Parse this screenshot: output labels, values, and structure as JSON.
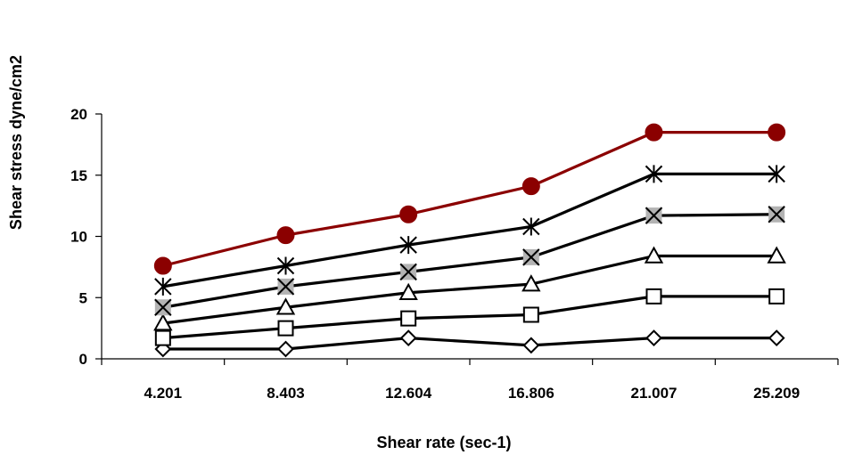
{
  "chart_data": {
    "type": "line",
    "title": "",
    "xlabel": "Shear rate (sec-1)",
    "ylabel": "Shear stress dyne/cm2",
    "categories": [
      "4.201",
      "8.403",
      "12.604",
      "16.806",
      "21.007",
      "25.209"
    ],
    "ylim": [
      0,
      20
    ],
    "yticks": [
      "0",
      "5",
      "10",
      "15",
      "20"
    ],
    "grid": false,
    "legend": "none",
    "series": [
      {
        "marker": "diamond",
        "color": "#000000",
        "fill": "#ffffff",
        "values": [
          0.8,
          0.8,
          1.7,
          1.1,
          1.7,
          1.7
        ]
      },
      {
        "marker": "square",
        "color": "#000000",
        "fill": "#ffffff",
        "values": [
          1.7,
          2.5,
          3.3,
          3.6,
          5.1,
          5.1
        ]
      },
      {
        "marker": "triangle",
        "color": "#000000",
        "fill": "#ffffff",
        "values": [
          2.9,
          4.2,
          5.4,
          6.1,
          8.4,
          8.4
        ]
      },
      {
        "marker": "x-square",
        "color": "#000000",
        "fill": "#b3b3b3",
        "values": [
          4.2,
          5.9,
          7.1,
          8.3,
          11.7,
          11.8
        ]
      },
      {
        "marker": "asterisk",
        "color": "#000000",
        "fill": "none",
        "values": [
          5.9,
          7.6,
          9.3,
          10.8,
          15.1,
          15.1
        ]
      },
      {
        "marker": "circle",
        "color": "#8b0000",
        "fill": "#8b0000",
        "values": [
          7.6,
          10.1,
          11.8,
          14.1,
          18.5,
          18.5
        ]
      }
    ]
  }
}
